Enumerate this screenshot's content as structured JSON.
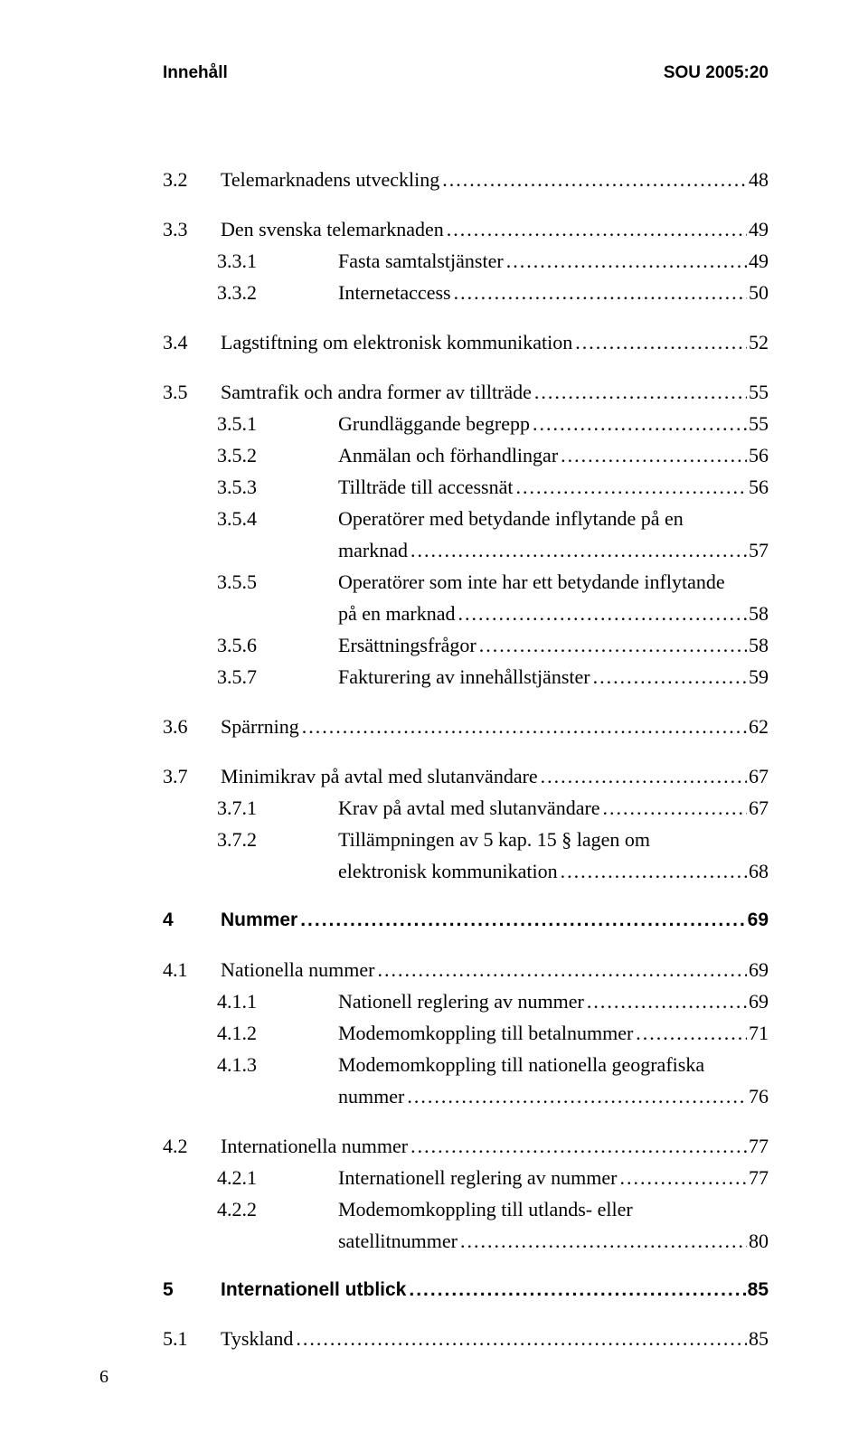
{
  "header": {
    "left": "Innehåll",
    "right": "SOU 2005:20"
  },
  "toc": [
    {
      "group": [
        {
          "num": "3.2",
          "label": "Telemarknadens utveckling",
          "page": "48",
          "indent": 0
        }
      ]
    },
    {
      "group": [
        {
          "num": "3.3",
          "label": "Den svenska telemarknaden",
          "page": "49",
          "indent": 0
        },
        {
          "num": "3.3.1",
          "label": "Fasta samtalstjänster",
          "page": "49",
          "indent": 1
        },
        {
          "num": "3.3.2",
          "label": "Internetaccess",
          "page": "50",
          "indent": 1
        }
      ]
    },
    {
      "group": [
        {
          "num": "3.4",
          "label": "Lagstiftning om elektronisk kommunikation",
          "page": "52",
          "indent": 0
        }
      ]
    },
    {
      "group": [
        {
          "num": "3.5",
          "label": "Samtrafik och andra former av tillträde",
          "page": "55",
          "indent": 0
        },
        {
          "num": "3.5.1",
          "label": "Grundläggande begrepp",
          "page": "55",
          "indent": 1
        },
        {
          "num": "3.5.2",
          "label": "Anmälan och förhandlingar",
          "page": "56",
          "indent": 1
        },
        {
          "num": "3.5.3",
          "label": "Tillträde till accessnät",
          "page": "56",
          "indent": 1
        },
        {
          "num": "3.5.4",
          "label": "Operatörer med betydande inflytande på en",
          "page": "",
          "indent": 1,
          "cont": "marknad",
          "contpage": "57"
        },
        {
          "num": "3.5.5",
          "label": "Operatörer som inte har ett betydande inflytande",
          "page": "",
          "indent": 1,
          "cont": "på en marknad",
          "contpage": "58"
        },
        {
          "num": "3.5.6",
          "label": "Ersättningsfrågor",
          "page": "58",
          "indent": 1
        },
        {
          "num": "3.5.7",
          "label": "Fakturering av innehållstjänster",
          "page": "59",
          "indent": 1
        }
      ]
    },
    {
      "group": [
        {
          "num": "3.6",
          "label": "Spärrning",
          "page": "62",
          "indent": 0
        }
      ]
    },
    {
      "group": [
        {
          "num": "3.7",
          "label": "Minimikrav på avtal med slutanvändare",
          "page": "67",
          "indent": 0
        },
        {
          "num": "3.7.1",
          "label": "Krav på avtal med slutanvändare",
          "page": "67",
          "indent": 1
        },
        {
          "num": "3.7.2",
          "label": "Tillämpningen av 5 kap. 15 § lagen om",
          "page": "",
          "indent": 1,
          "cont": "elektronisk kommunikation",
          "contpage": "68"
        }
      ]
    },
    {
      "group": [
        {
          "num": "4",
          "label": "Nummer",
          "page": "69",
          "indent": 0,
          "bold": true
        }
      ]
    },
    {
      "group": [
        {
          "num": "4.1",
          "label": "Nationella nummer",
          "page": "69",
          "indent": 0
        },
        {
          "num": "4.1.1",
          "label": "Nationell reglering av nummer",
          "page": "69",
          "indent": 1
        },
        {
          "num": "4.1.2",
          "label": "Modemomkoppling till betalnummer",
          "page": "71",
          "indent": 1
        },
        {
          "num": "4.1.3",
          "label": "Modemomkoppling till nationella geografiska",
          "page": "",
          "indent": 1,
          "cont": "nummer",
          "contpage": "76"
        }
      ]
    },
    {
      "group": [
        {
          "num": "4.2",
          "label": "Internationella nummer",
          "page": "77",
          "indent": 0
        },
        {
          "num": "4.2.1",
          "label": "Internationell reglering av nummer",
          "page": "77",
          "indent": 1
        },
        {
          "num": "4.2.2",
          "label": "Modemomkoppling till utlands- eller",
          "page": "",
          "indent": 1,
          "cont": "satellitnummer",
          "contpage": "80"
        }
      ]
    },
    {
      "group": [
        {
          "num": "5",
          "label": "Internationell utblick",
          "page": "85",
          "indent": 0,
          "bold": true
        }
      ]
    },
    {
      "group": [
        {
          "num": "5.1",
          "label": "Tyskland",
          "page": "85",
          "indent": 0
        }
      ]
    }
  ],
  "page_number": "6"
}
